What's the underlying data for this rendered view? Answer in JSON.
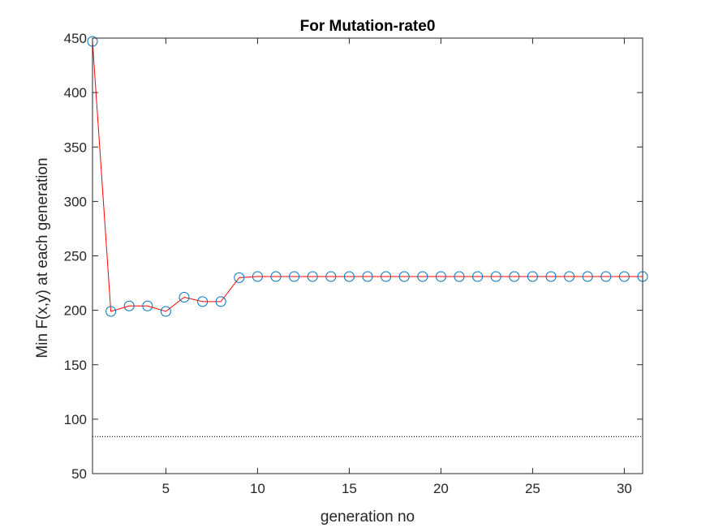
{
  "chart_data": {
    "type": "line",
    "title": "For Mutation-rate0",
    "xlabel": "generation no",
    "ylabel": "Min F(x,y) at each generation",
    "xlim": [
      1,
      31
    ],
    "ylim": [
      50,
      450
    ],
    "xticks": [
      5,
      10,
      15,
      20,
      25,
      30
    ],
    "yticks": [
      50,
      100,
      150,
      200,
      250,
      300,
      350,
      400,
      450
    ],
    "grid": false,
    "legend": "none",
    "series": [
      {
        "line_color": "#ff0000",
        "marker": "circle",
        "marker_color": "#0072bd",
        "x": [
          1,
          2,
          3,
          4,
          5,
          6,
          7,
          8,
          9,
          10,
          11,
          12,
          13,
          14,
          15,
          16,
          17,
          18,
          19,
          20,
          21,
          22,
          23,
          24,
          25,
          26,
          27,
          28,
          29,
          30,
          31
        ],
        "y": [
          447,
          199,
          204,
          204,
          199,
          212,
          208,
          208,
          230,
          231,
          231,
          231,
          231,
          231,
          231,
          231,
          231,
          231,
          231,
          231,
          231,
          231,
          231,
          231,
          231,
          231,
          231,
          231,
          231,
          231,
          231
        ]
      }
    ],
    "reference_lines": [
      {
        "orientation": "horizontal",
        "y": 84,
        "style": "dotted",
        "color": "#000000"
      }
    ]
  }
}
